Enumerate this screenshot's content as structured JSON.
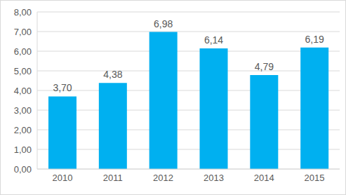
{
  "chart_data": {
    "type": "bar",
    "categories": [
      "2010",
      "2011",
      "2012",
      "2013",
      "2014",
      "2015"
    ],
    "values": [
      3.7,
      4.38,
      6.98,
      6.14,
      4.79,
      6.19
    ],
    "value_labels": [
      "3,70",
      "4,38",
      "6,98",
      "6,14",
      "4,79",
      "6,19"
    ],
    "color": "#00b0f0",
    "ylim": [
      0,
      8
    ],
    "yticks": [
      {
        "value": 0,
        "label": "0,00"
      },
      {
        "value": 1,
        "label": "1,00"
      },
      {
        "value": 2,
        "label": "2,00"
      },
      {
        "value": 3,
        "label": "3,00"
      },
      {
        "value": 4,
        "label": "4,00"
      },
      {
        "value": 5,
        "label": "5,00"
      },
      {
        "value": 6,
        "label": "6,00"
      },
      {
        "value": 7,
        "label": "7,00"
      },
      {
        "value": 8,
        "label": "8,00"
      }
    ],
    "grid": true,
    "data_labels": true
  }
}
